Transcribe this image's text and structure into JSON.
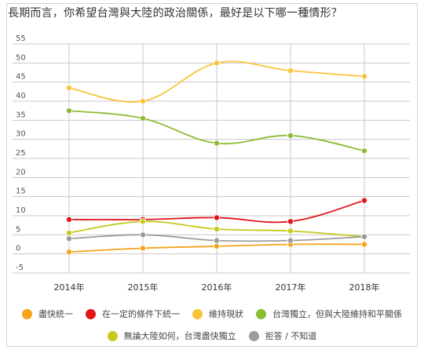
{
  "chart_data": {
    "type": "line",
    "title": "長期而言，你希望台灣與大陸的政治關係，最好是以下哪一種情形？",
    "categories": [
      "2014年",
      "2015年",
      "2016年",
      "2017年",
      "2018年"
    ],
    "ylim": [
      -5,
      55
    ],
    "yticks": [
      -5,
      0,
      5,
      10,
      15,
      20,
      25,
      30,
      35,
      40,
      45,
      50,
      55
    ],
    "grid": true,
    "legend_position": "bottom",
    "series": [
      {
        "name": "盡快統一",
        "color": "#f5a31a",
        "values": [
          0.5,
          1.5,
          2,
          2.5,
          2.5
        ]
      },
      {
        "name": "在一定的條件下統一",
        "color": "#e3151a",
        "values": [
          9,
          9,
          9.5,
          8.5,
          14
        ]
      },
      {
        "name": "維持現狀",
        "color": "#f9c43b",
        "values": [
          43.5,
          40,
          50,
          48,
          46.5
        ]
      },
      {
        "name": "台灣獨立，但與大陸維持和平關係",
        "color": "#8cbb34",
        "values": [
          37.5,
          35.5,
          29,
          31,
          27
        ]
      },
      {
        "name": "無論大陸如何，台灣盡快獨立",
        "color": "#c5c91d",
        "values": [
          5.5,
          8.5,
          6.5,
          6,
          4.5
        ]
      },
      {
        "name": "拒答 / 不知道",
        "color": "#9c9c9c",
        "values": [
          4,
          5,
          3.5,
          3.5,
          4.5
        ]
      }
    ]
  }
}
